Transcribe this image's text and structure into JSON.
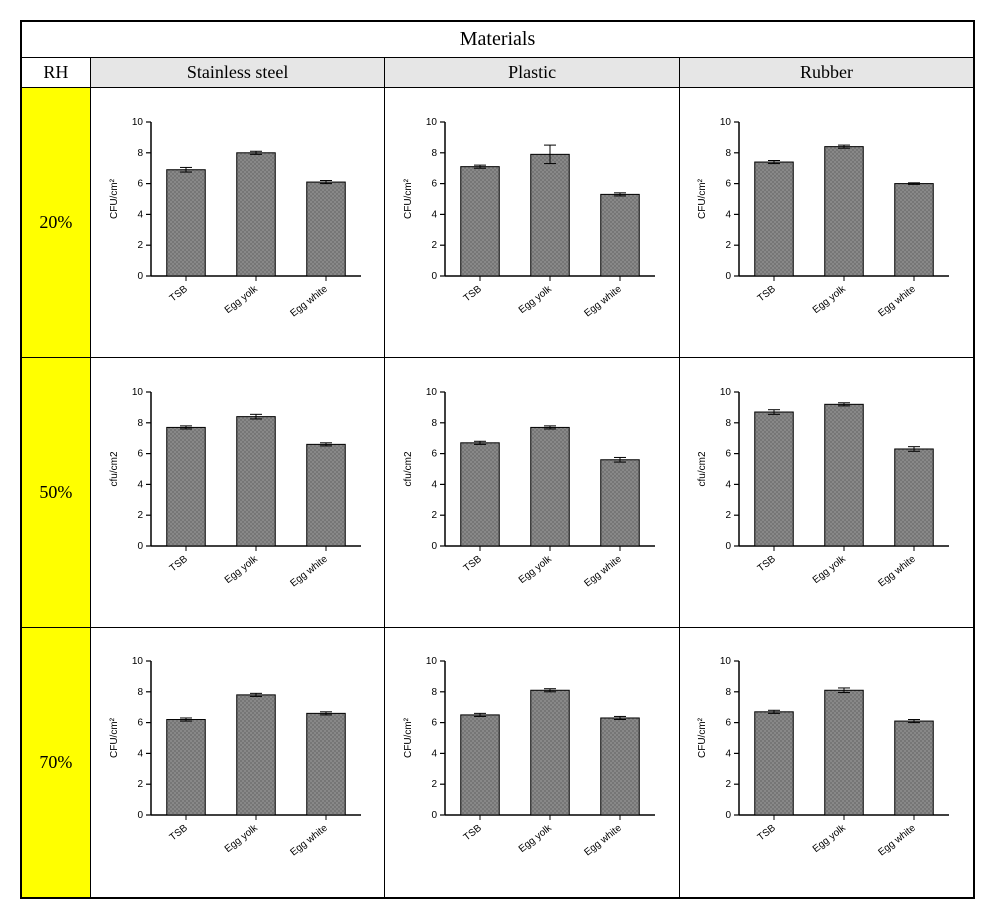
{
  "table_title": "Materials",
  "rh_header": "RH",
  "material_headers": [
    "Stainless steel",
    "Plastic",
    "Rubber"
  ],
  "rh_labels": [
    "20%",
    "50%",
    "70%"
  ],
  "chart": {
    "type": "bar",
    "categories": [
      "TSB",
      "Egg yolk",
      "Egg white"
    ],
    "ylabel_variants": [
      "CFU/cm²",
      "cfu/cm2"
    ],
    "ylim": [
      0,
      10
    ],
    "ytick_step": 2,
    "yticks": [
      0,
      2,
      4,
      6,
      8,
      10
    ],
    "bar_fill": "#8a8a8a",
    "bar_pattern": "crosshatch",
    "bar_stroke": "#000000",
    "error_cap_color": "#000000",
    "axis_color": "#000000",
    "background": "#ffffff",
    "label_fontsize": 10,
    "axis_fontsize": 10,
    "tick_fontsize": 10,
    "bar_width_rel": 0.55
  },
  "cells": [
    [
      {
        "values": [
          6.9,
          8.0,
          6.1
        ],
        "errors": [
          0.15,
          0.1,
          0.1
        ],
        "ylabel": "CFU/cm²"
      },
      {
        "values": [
          7.1,
          7.9,
          5.3
        ],
        "errors": [
          0.1,
          0.6,
          0.1
        ],
        "ylabel": "CFU/cm²"
      },
      {
        "values": [
          7.4,
          8.4,
          6.0
        ],
        "errors": [
          0.1,
          0.1,
          0.05
        ],
        "ylabel": "CFU/cm²"
      }
    ],
    [
      {
        "values": [
          7.7,
          8.4,
          6.6
        ],
        "errors": [
          0.1,
          0.15,
          0.1
        ],
        "ylabel": "cfu/cm2"
      },
      {
        "values": [
          6.7,
          7.7,
          5.6
        ],
        "errors": [
          0.1,
          0.1,
          0.15
        ],
        "ylabel": "cfu/cm2"
      },
      {
        "values": [
          8.7,
          9.2,
          6.3
        ],
        "errors": [
          0.15,
          0.1,
          0.15
        ],
        "ylabel": "cfu/cm2"
      }
    ],
    [
      {
        "values": [
          6.2,
          7.8,
          6.6
        ],
        "errors": [
          0.1,
          0.1,
          0.1
        ],
        "ylabel": "CFU/cm²"
      },
      {
        "values": [
          6.5,
          8.1,
          6.3
        ],
        "errors": [
          0.1,
          0.1,
          0.1
        ],
        "ylabel": "CFU/cm²"
      },
      {
        "values": [
          6.7,
          8.1,
          6.1
        ],
        "errors": [
          0.1,
          0.15,
          0.1
        ],
        "ylabel": "CFU/cm²"
      }
    ]
  ],
  "colors": {
    "header_bg": "#e6e6e6",
    "rh_bg": "#ffff00",
    "border": "#000000",
    "page_bg": "#ffffff"
  }
}
